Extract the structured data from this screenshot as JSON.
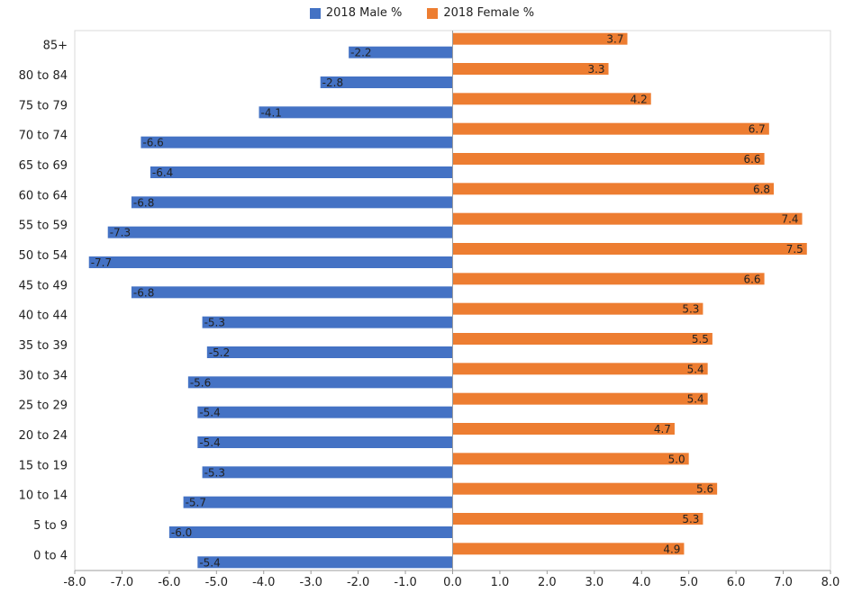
{
  "chart_data": {
    "type": "bar",
    "orientation": "horizontal",
    "title": "",
    "xlabel": "",
    "ylabel": "",
    "categories": [
      "85+",
      "80 to 84",
      "75 to 79",
      "70 to 74",
      "65 to 69",
      "60 to 64",
      "55 to 59",
      "50 to 54",
      "45 to 49",
      "40 to 44",
      "35 to 39",
      "30 to 34",
      "25 to 29",
      "20 to 24",
      "15 to 19",
      "10 to 14",
      "5 to 9",
      "0 to 4"
    ],
    "series": [
      {
        "name": "2018 Male %",
        "color": "#4472c4",
        "values": [
          -2.2,
          -2.8,
          -4.1,
          -6.6,
          -6.4,
          -6.8,
          -7.3,
          -7.7,
          -6.8,
          -5.3,
          -5.2,
          -5.6,
          -5.4,
          -5.4,
          -5.3,
          -5.7,
          -6.0,
          -5.4
        ]
      },
      {
        "name": "2018 Female %",
        "color": "#ed7d31",
        "values": [
          3.7,
          3.3,
          4.2,
          6.7,
          6.6,
          6.8,
          7.4,
          7.5,
          6.6,
          5.3,
          5.5,
          5.4,
          5.4,
          4.7,
          5.0,
          5.6,
          5.3,
          4.9
        ]
      }
    ],
    "xlim": [
      -8,
      8
    ],
    "x_ticks": [
      "-8.0",
      "-7.0",
      "-6.0",
      "-5.0",
      "-4.0",
      "-3.0",
      "-2.0",
      "-1.0",
      "0.0",
      "1.0",
      "2.0",
      "3.0",
      "4.0",
      "5.0",
      "6.0",
      "7.0",
      "8.0"
    ],
    "legend_position": "top-center",
    "grid": false
  }
}
